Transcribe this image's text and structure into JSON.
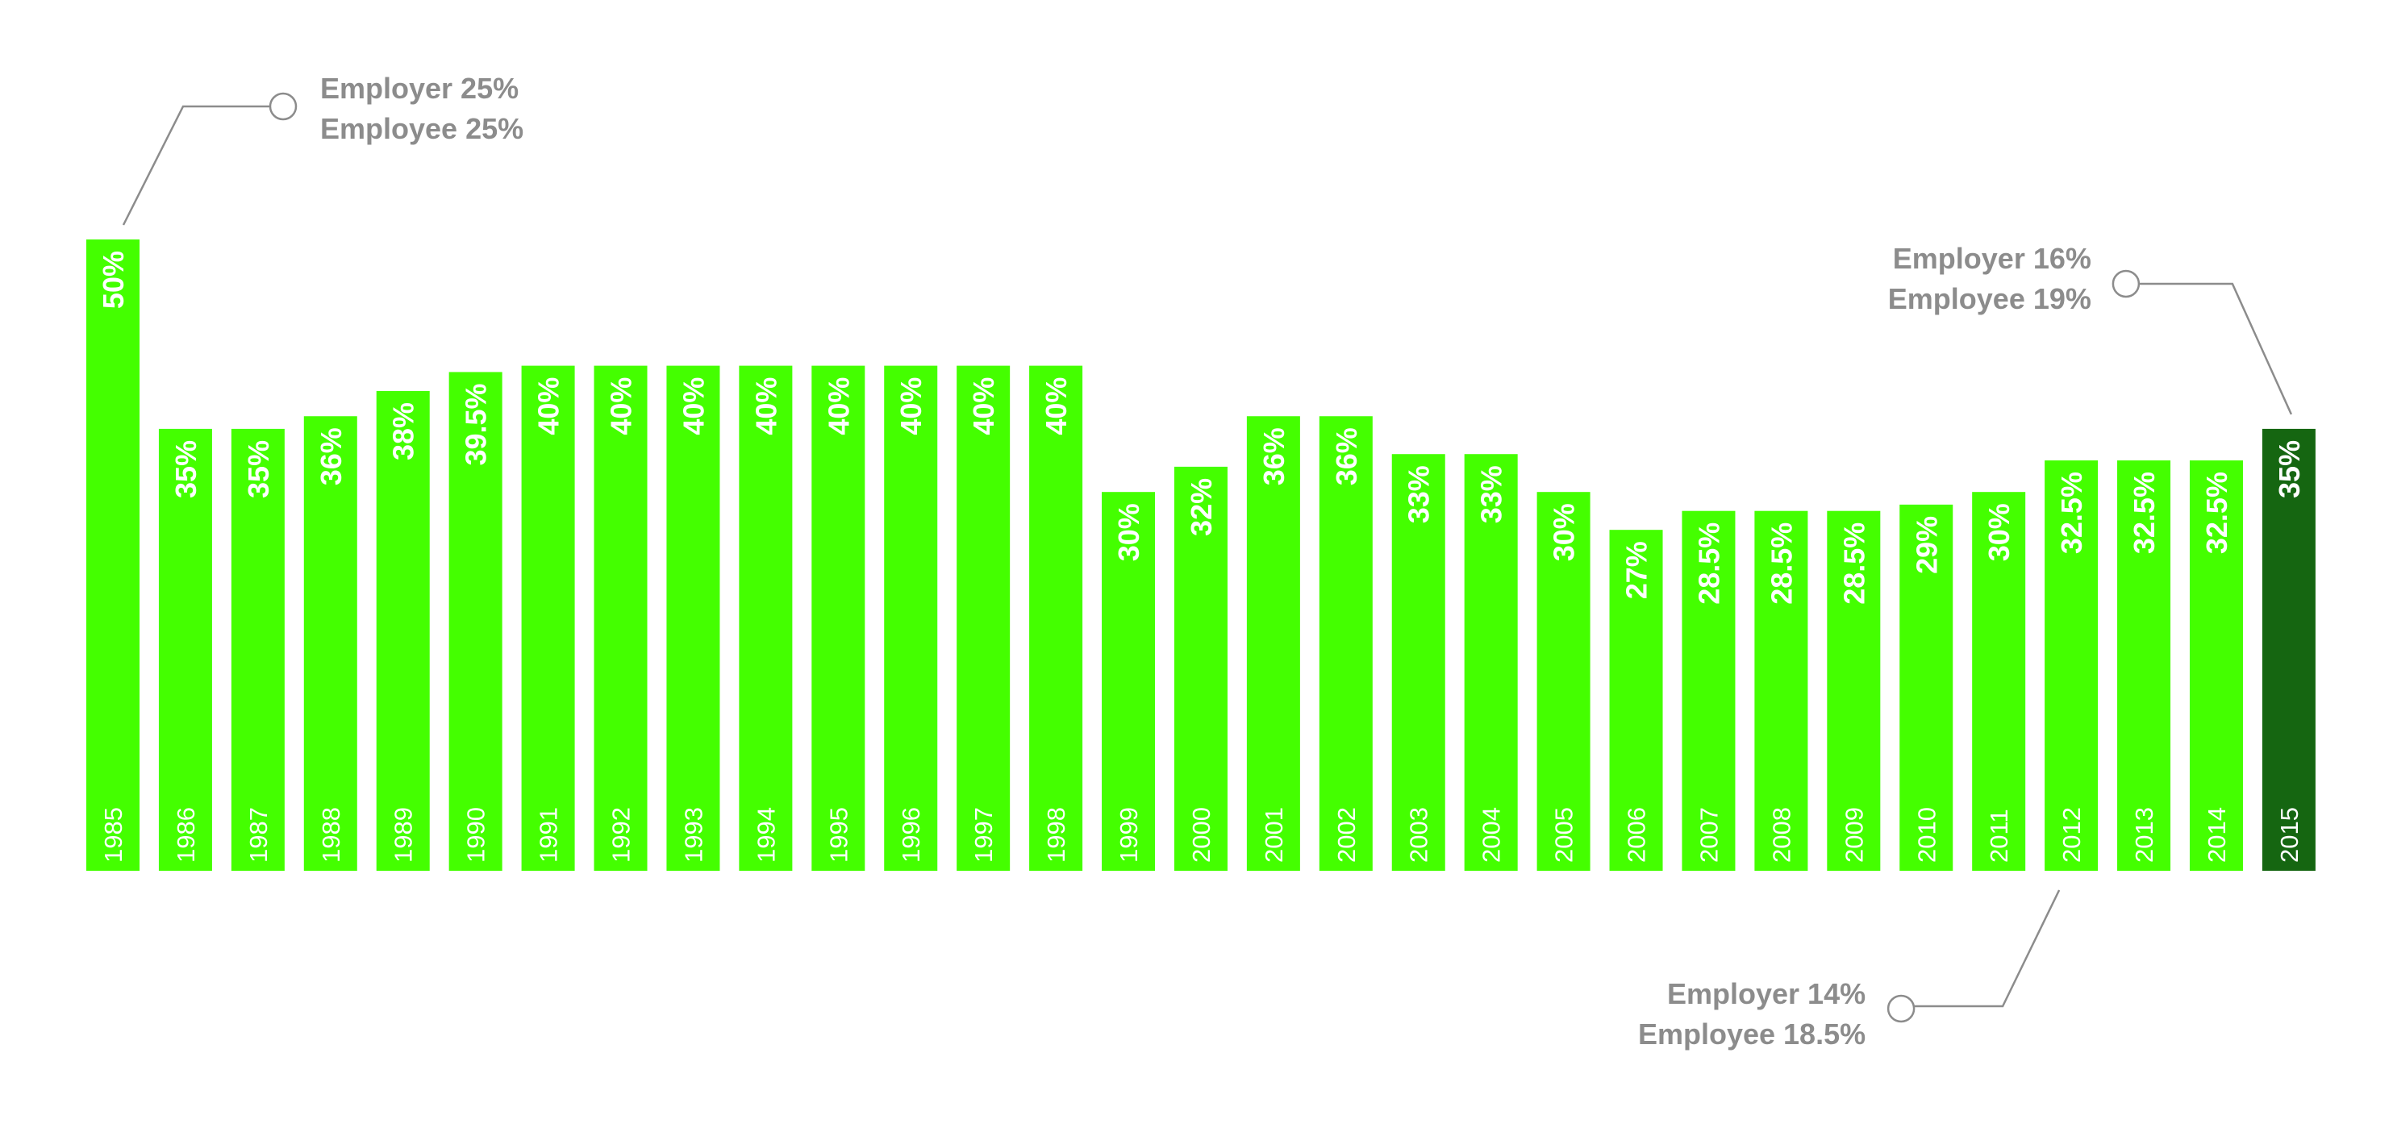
{
  "chart_data": {
    "type": "bar",
    "categories": [
      "1985",
      "1986",
      "1987",
      "1988",
      "1989",
      "1990",
      "1991",
      "1992",
      "1993",
      "1994",
      "1995",
      "1996",
      "1997",
      "1998",
      "1999",
      "2000",
      "2001",
      "2002",
      "2003",
      "2004",
      "2005",
      "2006",
      "2007",
      "2008",
      "2009",
      "2010",
      "2011",
      "2012",
      "2013",
      "2014",
      "2015"
    ],
    "values": [
      50,
      35,
      35,
      36,
      38,
      39.5,
      40,
      40,
      40,
      40,
      40,
      40,
      40,
      40,
      30,
      32,
      36,
      36,
      33,
      33,
      30,
      27,
      28.5,
      28.5,
      28.5,
      29,
      30,
      32.5,
      32.5,
      32.5,
      35
    ],
    "value_labels": [
      "50%",
      "35%",
      "35%",
      "36%",
      "38%",
      "39.5%",
      "40%",
      "40%",
      "40%",
      "40%",
      "40%",
      "40%",
      "40%",
      "40%",
      "30%",
      "32%",
      "36%",
      "36%",
      "33%",
      "33%",
      "30%",
      "27%",
      "28.5%",
      "28.5%",
      "28.5%",
      "29%",
      "30%",
      "32.5%",
      "32.5%",
      "32.5%",
      "35%"
    ],
    "title": "",
    "xlabel": "",
    "ylabel": "",
    "ylim": [
      0,
      50
    ],
    "grid": false,
    "legend": "none",
    "colors": {
      "bar": "#44ff00",
      "highlight": "#156611",
      "annotation": "#8c8c8c",
      "label": "#ffffff"
    },
    "highlight_category": "2015",
    "annotations": [
      {
        "category": "1985",
        "lines": [
          "Employer 25%",
          "Employee 25%"
        ],
        "position": "top-right"
      },
      {
        "category": "2015",
        "lines": [
          "Employer 16%",
          "Employee 19%"
        ],
        "position": "top-left"
      },
      {
        "category": "2012",
        "lines": [
          "Employer 14%",
          "Employee 18.5%"
        ],
        "position": "bottom-left"
      }
    ]
  }
}
